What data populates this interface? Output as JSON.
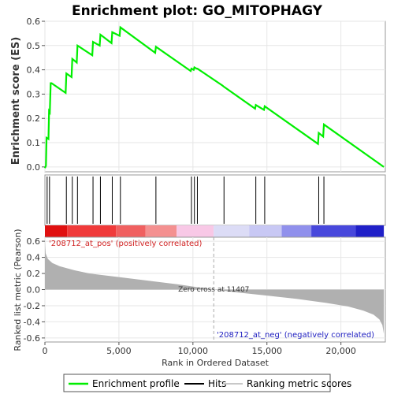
{
  "chart_data": {
    "type": "line",
    "title": "Enrichment plot: GO_MITOPHAGY",
    "x_range": [
      0,
      23000
    ],
    "x_ticks": [
      0,
      5000,
      10000,
      15000,
      20000
    ],
    "x_tick_labels": [
      "0",
      "5,000",
      "10,000",
      "15,000",
      "20,000"
    ],
    "xlabel": "Rank in Ordered Dataset",
    "es_panel": {
      "ylabel": "Enrichment score (ES)",
      "ylim": [
        -0.02,
        0.6
      ],
      "y_ticks": [
        0.0,
        0.1,
        0.2,
        0.3,
        0.4,
        0.5,
        0.6
      ],
      "y_tick_labels": [
        "0.0",
        "0.1",
        "0.2",
        "0.3",
        "0.4",
        "0.5",
        "0.6"
      ],
      "grid": true,
      "series": [
        {
          "name": "Enrichment profile",
          "color": "#00ee00",
          "x": [
            0,
            70,
            110,
            240,
            280,
            330,
            390,
            450,
            1400,
            1450,
            1800,
            1850,
            2150,
            2200,
            3200,
            3250,
            3700,
            3750,
            4500,
            4550,
            5050,
            5100,
            7450,
            7500,
            9850,
            9900,
            10050,
            10100,
            10250,
            10300,
            12000,
            12100,
            14200,
            14250,
            14800,
            14850,
            18450,
            18500,
            18800,
            18850,
            22900
          ],
          "y": [
            -0.005,
            0.005,
            0.12,
            0.115,
            0.23,
            0.225,
            0.345,
            0.345,
            0.305,
            0.385,
            0.37,
            0.445,
            0.43,
            0.5,
            0.46,
            0.515,
            0.5,
            0.545,
            0.51,
            0.555,
            0.54,
            0.575,
            0.47,
            0.495,
            0.395,
            0.405,
            0.4,
            0.41,
            0.405,
            0.405,
            0.335,
            0.33,
            0.24,
            0.255,
            0.235,
            0.25,
            0.095,
            0.14,
            0.125,
            0.175,
            0.0
          ]
        }
      ]
    },
    "hits_panel": {
      "name": "Hits",
      "hit_ranks": [
        150,
        310,
        1450,
        1850,
        2200,
        3250,
        3750,
        4550,
        5100,
        7500,
        9900,
        10100,
        10300,
        12100,
        14250,
        14850,
        18500,
        18850
      ]
    },
    "heatmap_bar": {
      "colors": [
        {
          "from": 0,
          "to": 1500,
          "color": "#e01010"
        },
        {
          "from": 1500,
          "to": 4800,
          "color": "#f03a3a"
        },
        {
          "from": 4800,
          "to": 6800,
          "color": "#f06060"
        },
        {
          "from": 6800,
          "to": 8900,
          "color": "#f49090"
        },
        {
          "from": 8900,
          "to": 11400,
          "color": "#f8c8e6"
        },
        {
          "from": 11400,
          "to": 13800,
          "color": "#dcdcf6"
        },
        {
          "from": 13800,
          "to": 16000,
          "color": "#c8c8f4"
        },
        {
          "from": 16000,
          "to": 18000,
          "color": "#9090ec"
        },
        {
          "from": 18000,
          "to": 21000,
          "color": "#4848dc"
        },
        {
          "from": 21000,
          "to": 22900,
          "color": "#2020c8"
        }
      ]
    },
    "metric_panel": {
      "ylabel": "Ranked list metric (Pearson)",
      "ylim": [
        -0.65,
        0.65
      ],
      "y_ticks": [
        -0.6,
        -0.4,
        -0.2,
        0.0,
        0.2,
        0.4,
        0.6
      ],
      "y_tick_labels": [
        "-0.6",
        "-0.4",
        "-0.2",
        "0.0",
        "0.2",
        "0.4",
        "0.6"
      ],
      "grid": true,
      "profile_x": [
        0,
        50,
        200,
        500,
        1000,
        2000,
        3000,
        5000,
        7000,
        9000,
        11407,
        13000,
        15000,
        17000,
        19000,
        20500,
        21500,
        22200,
        22600,
        22800,
        22900
      ],
      "profile_y": [
        0.6,
        0.45,
        0.38,
        0.33,
        0.29,
        0.24,
        0.2,
        0.155,
        0.11,
        0.065,
        0.0,
        -0.035,
        -0.075,
        -0.115,
        -0.165,
        -0.21,
        -0.26,
        -0.31,
        -0.37,
        -0.44,
        -0.55
      ],
      "zero_cross": 11407,
      "zero_cross_label": "Zero cross at 11407",
      "pos_label": "'208712_at_pos' (positively correlated)",
      "neg_label": "'208712_at_neg' (negatively correlated)"
    },
    "legend": {
      "placement": "bottom",
      "items": [
        {
          "label": "Enrichment profile",
          "color": "#00ee00"
        },
        {
          "label": "Hits",
          "color": "#000000"
        },
        {
          "label": "Ranking metric scores",
          "color": "#c8c8c8"
        }
      ]
    }
  }
}
